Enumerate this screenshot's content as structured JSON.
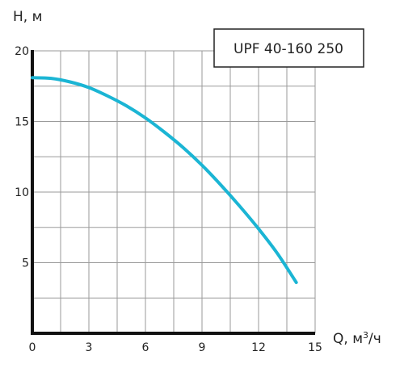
{
  "chart_data": {
    "type": "line",
    "ylabel": "H, м",
    "xlabel_prefix": "Q, м",
    "xlabel_sup": "3",
    "xlabel_suffix": "/ч",
    "annotation": "UPF 40-160 250",
    "xlim": [
      0,
      15
    ],
    "ylim": [
      0,
      20
    ],
    "x_ticks": [
      0,
      3,
      6,
      9,
      12,
      15
    ],
    "y_ticks": [
      5,
      10,
      15,
      20
    ],
    "grid": true,
    "grid_x_step": 1.5,
    "grid_y_step": 2.5,
    "series": [
      {
        "color": "#1bb5d4",
        "x": [
          0,
          1,
          2,
          3,
          4,
          5,
          6,
          7,
          8,
          9,
          10,
          11,
          12,
          13,
          14
        ],
        "y": [
          18.1,
          18.05,
          17.8,
          17.4,
          16.8,
          16.1,
          15.25,
          14.25,
          13.15,
          11.9,
          10.5,
          9.0,
          7.4,
          5.65,
          3.6
        ]
      }
    ]
  }
}
